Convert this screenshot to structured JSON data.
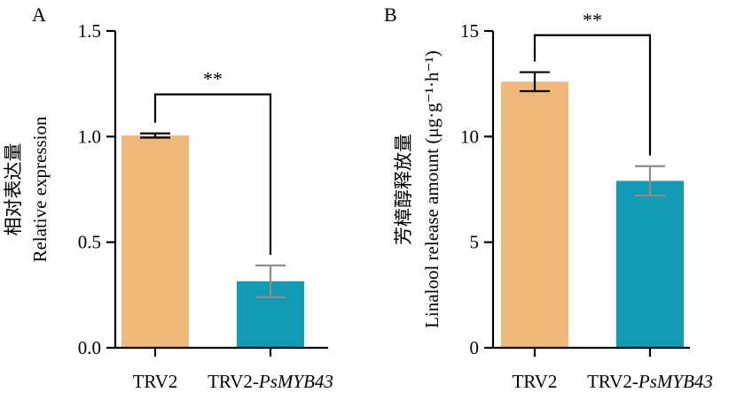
{
  "chart_data": [
    {
      "type": "bar",
      "panel": "A",
      "categories": [
        "TRV2",
        "TRV2-PsMYB43"
      ],
      "category_parts": [
        [
          {
            "text": "TRV2",
            "italic": false
          }
        ],
        [
          {
            "text": "TRV2-",
            "italic": false
          },
          {
            "text": "PsMYB43",
            "italic": true
          }
        ]
      ],
      "values": [
        1.005,
        0.315
      ],
      "errors": [
        0.01,
        0.075
      ],
      "bar_colors": [
        "#F0B97A",
        "#129BB4"
      ],
      "error_colors": [
        "#000000",
        "#8C8C8C"
      ],
      "ylabel_lines": [
        "相对表达量",
        "Relative expression"
      ],
      "ylim": [
        0,
        1.5
      ],
      "yticks": [
        0.0,
        0.5,
        1.0,
        1.5
      ],
      "ytick_labels": [
        "0.0",
        "0.5",
        "1.0",
        "1.5"
      ],
      "significance": "**",
      "bracket_top": 1.2
    },
    {
      "type": "bar",
      "panel": "B",
      "categories": [
        "TRV2",
        "TRV2-PsMYB43"
      ],
      "category_parts": [
        [
          {
            "text": "TRV2",
            "italic": false
          }
        ],
        [
          {
            "text": "TRV2-",
            "italic": false
          },
          {
            "text": "PsMYB43",
            "italic": true
          }
        ]
      ],
      "values": [
        12.6,
        7.9
      ],
      "errors": [
        0.45,
        0.7
      ],
      "bar_colors": [
        "#F0B97A",
        "#129BB4"
      ],
      "error_colors": [
        "#000000",
        "#8C8C8C"
      ],
      "ylabel_lines": [
        "芳樟醇释放量",
        "Linalool release amount (μg·g⁻¹·h⁻¹)"
      ],
      "ylim": [
        0,
        15
      ],
      "yticks": [
        0,
        5,
        10,
        15
      ],
      "ytick_labels": [
        "0",
        "5",
        "10",
        "15"
      ],
      "significance": "**",
      "bracket_top": 14.8
    }
  ]
}
